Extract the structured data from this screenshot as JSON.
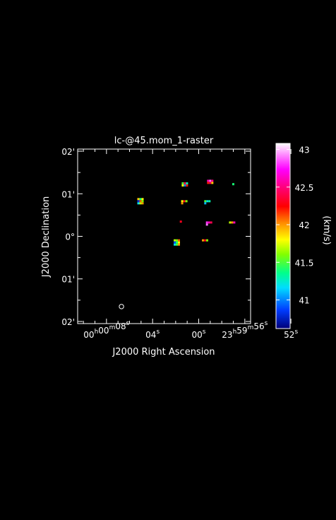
{
  "chart_data": {
    "type": "heatmap",
    "title": "lc-@45.mom_1-raster",
    "xlabel": "J2000 Right Ascension",
    "ylabel": "J2000 Declination",
    "colorbar_label": "(km/s)",
    "colorbar_range": [
      40.62,
      43.08
    ],
    "colorbar_ticks": [
      {
        "value": 41,
        "label": "41"
      },
      {
        "value": 41.5,
        "label": "41.5"
      },
      {
        "value": 42,
        "label": "42"
      },
      {
        "value": 42.5,
        "label": "42.5"
      },
      {
        "value": 43,
        "label": "43"
      }
    ],
    "xlim_seconds_offset": [
      10.5,
      -4.5
    ],
    "ylim_arcmin": [
      -2.05,
      2.05
    ],
    "x_tick_labels": [
      {
        "offset_s": 8,
        "parts": [
          [
            "00",
            "h"
          ],
          [
            "00",
            "m"
          ],
          [
            "08",
            "s"
          ]
        ]
      },
      {
        "offset_s": 4,
        "parts": [
          [
            "04",
            "s"
          ]
        ]
      },
      {
        "offset_s": 0,
        "parts": [
          [
            "00",
            "s"
          ]
        ]
      },
      {
        "offset_s": -4,
        "parts": [
          [
            "23",
            "h"
          ],
          [
            "59",
            "m"
          ],
          [
            "56",
            "s"
          ]
        ]
      },
      {
        "offset_s": -8,
        "parts": [
          [
            "52",
            "s"
          ]
        ]
      }
    ],
    "y_tick_labels": [
      {
        "value": 2,
        "text": "02'"
      },
      {
        "value": 1,
        "text": "01'"
      },
      {
        "value": 0,
        "text": "0°"
      },
      {
        "value": -1,
        "text": "01'"
      },
      {
        "value": -2,
        "text": "02'"
      }
    ],
    "beam": {
      "x": 6.7,
      "y": -1.65
    },
    "clumps": [
      {
        "x": 5.05,
        "y": 0.85,
        "values": [
          41.9,
          41.4,
          41.8,
          40.8,
          42.1,
          41.6,
          41.2,
          41.7,
          42.0
        ]
      },
      {
        "x": 1.2,
        "y": 1.22,
        "values": [
          41.5,
          42.4,
          41.3,
          41.8,
          41.0,
          42.2
        ]
      },
      {
        "x": 1.25,
        "y": 0.8,
        "values": [
          41.8,
          42.3,
          41.6,
          42.0
        ]
      },
      {
        "x": 1.55,
        "y": 0.32,
        "values": [
          42.3
        ]
      },
      {
        "x": 1.9,
        "y": -0.12,
        "values": [
          41.7,
          41.6,
          42.1,
          40.9,
          41.4,
          41.8,
          41.2,
          41.5,
          42.0
        ]
      },
      {
        "x": -1.0,
        "y": 1.28,
        "values": [
          42.6,
          42.9,
          42.5,
          42.2,
          42.4,
          41.9
        ]
      },
      {
        "x": -0.75,
        "y": 0.8,
        "values": [
          41.5,
          41.2,
          41.3,
          41.1
        ]
      },
      {
        "x": -0.9,
        "y": 0.3,
        "values": [
          42.8,
          42.6,
          42.4,
          42.9
        ]
      },
      {
        "x": -0.55,
        "y": -0.12,
        "values": [
          42.0,
          42.3,
          41.6
        ]
      },
      {
        "x": -3.0,
        "y": 1.2,
        "values": [
          41.4
        ]
      },
      {
        "x": -2.9,
        "y": 0.3,
        "values": [
          41.7,
          42.0,
          42.6
        ]
      }
    ]
  }
}
